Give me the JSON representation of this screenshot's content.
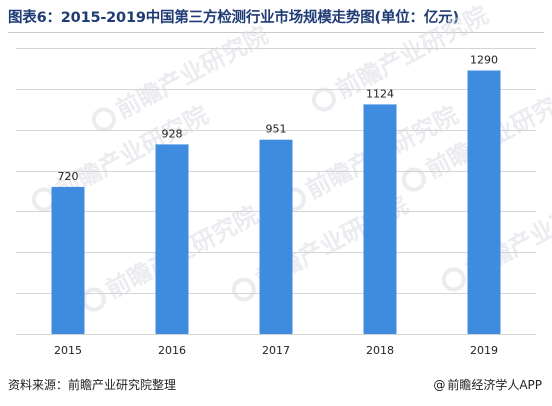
{
  "header": {
    "title": "图表6：2015-2019中国第三方检测行业市场规模走势图(单位：亿元)"
  },
  "chart_data": {
    "type": "bar",
    "categories": [
      "2015",
      "2016",
      "2017",
      "2018",
      "2019"
    ],
    "values": [
      720,
      928,
      951,
      1124,
      1290
    ],
    "ylim": [
      0,
      1400
    ],
    "grid": true,
    "bar_color": "#3f8be0",
    "grid_color": "#d4d4d4"
  },
  "watermark": {
    "text": "前瞻产业研究院"
  },
  "footer": {
    "source": "资料来源：前瞻产业研究院整理",
    "brand_symbol": "@",
    "brand": "前瞻经济学人APP"
  }
}
